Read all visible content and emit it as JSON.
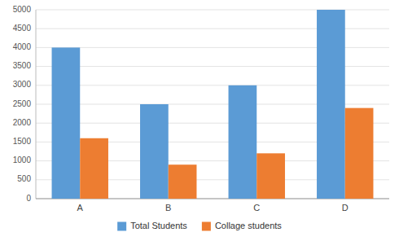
{
  "chart_data": {
    "type": "bar",
    "categories": [
      "A",
      "B",
      "C",
      "D"
    ],
    "series": [
      {
        "name": "Total Students",
        "color": "#5b9bd5",
        "values": [
          4000,
          2500,
          3000,
          5000
        ]
      },
      {
        "name": "Collage students",
        "color": "#ed7d31",
        "values": [
          1600,
          900,
          1200,
          2400
        ]
      }
    ],
    "ylim": [
      0,
      5000
    ],
    "yticks": [
      0,
      500,
      1000,
      1500,
      2000,
      2500,
      3000,
      3500,
      4000,
      4500,
      5000
    ],
    "grid": true,
    "legend": "bottom"
  }
}
